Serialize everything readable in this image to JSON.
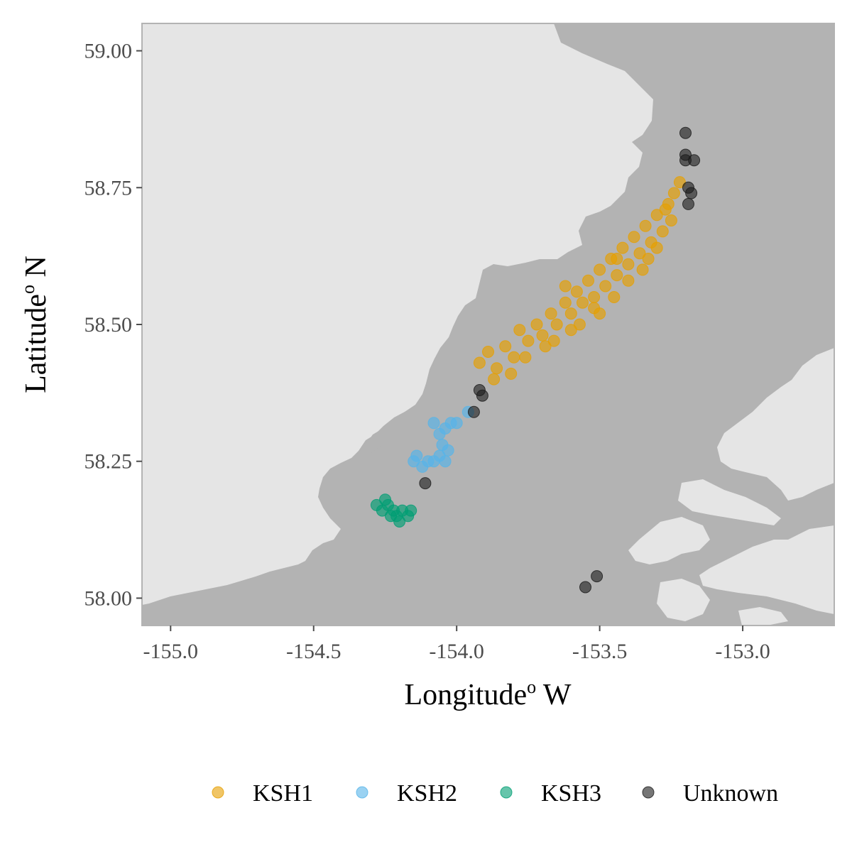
{
  "chart_data": {
    "type": "scatter",
    "xlabel": "Longitude",
    "xlabel_sup": "o",
    "xlabel_suffix": " W",
    "ylabel": "Latitude",
    "ylabel_sup": "o",
    "ylabel_suffix": " N",
    "xlim": [
      -155.1,
      -152.68
    ],
    "ylim": [
      57.95,
      59.05
    ],
    "x_ticks": [
      -155.0,
      -154.5,
      -154.0,
      -153.5,
      -153.0
    ],
    "x_tick_labels": [
      "-155.0",
      "-154.5",
      "-154.0",
      "-153.5",
      "-153.0"
    ],
    "y_ticks": [
      58.0,
      58.25,
      58.5,
      58.75,
      59.0
    ],
    "y_tick_labels": [
      "58.00",
      "58.25",
      "58.50",
      "58.75",
      "59.00"
    ],
    "grid": false,
    "legend_position": "bottom",
    "colors": {
      "water": "#b3b3b3",
      "land": "#e5e5e5",
      "panel_border": "#b3b3b3"
    },
    "series": [
      {
        "name": "KSH1",
        "color": "#E69F00",
        "points": [
          [
            -153.92,
            58.43
          ],
          [
            -153.89,
            58.45
          ],
          [
            -153.86,
            58.42
          ],
          [
            -153.83,
            58.46
          ],
          [
            -153.8,
            58.44
          ],
          [
            -153.78,
            58.49
          ],
          [
            -153.75,
            58.47
          ],
          [
            -153.72,
            58.5
          ],
          [
            -153.7,
            58.48
          ],
          [
            -153.67,
            58.52
          ],
          [
            -153.65,
            58.5
          ],
          [
            -153.62,
            58.54
          ],
          [
            -153.6,
            58.52
          ],
          [
            -153.58,
            58.56
          ],
          [
            -153.56,
            58.54
          ],
          [
            -153.54,
            58.58
          ],
          [
            -153.52,
            58.55
          ],
          [
            -153.5,
            58.6
          ],
          [
            -153.48,
            58.57
          ],
          [
            -153.46,
            58.62
          ],
          [
            -153.44,
            58.59
          ],
          [
            -153.42,
            58.64
          ],
          [
            -153.4,
            58.61
          ],
          [
            -153.38,
            58.66
          ],
          [
            -153.36,
            58.63
          ],
          [
            -153.34,
            58.68
          ],
          [
            -153.32,
            58.65
          ],
          [
            -153.3,
            58.7
          ],
          [
            -153.28,
            58.67
          ],
          [
            -153.26,
            58.72
          ],
          [
            -153.24,
            58.74
          ],
          [
            -153.22,
            58.76
          ],
          [
            -153.25,
            58.69
          ],
          [
            -153.33,
            58.62
          ],
          [
            -153.45,
            58.55
          ],
          [
            -153.57,
            58.5
          ],
          [
            -153.69,
            58.46
          ],
          [
            -153.81,
            58.41
          ],
          [
            -153.87,
            58.4
          ],
          [
            -153.52,
            58.53
          ],
          [
            -153.6,
            58.49
          ],
          [
            -153.4,
            58.58
          ],
          [
            -153.62,
            58.57
          ],
          [
            -153.66,
            58.47
          ],
          [
            -153.76,
            58.44
          ],
          [
            -153.5,
            58.52
          ],
          [
            -153.44,
            58.62
          ],
          [
            -153.35,
            58.6
          ],
          [
            -153.3,
            58.64
          ],
          [
            -153.27,
            58.71
          ]
        ]
      },
      {
        "name": "KSH2",
        "color": "#56B4E9",
        "points": [
          [
            -154.08,
            58.32
          ],
          [
            -154.06,
            58.3
          ],
          [
            -154.05,
            58.28
          ],
          [
            -154.04,
            58.31
          ],
          [
            -154.03,
            58.27
          ],
          [
            -154.02,
            58.32
          ],
          [
            -154.0,
            58.32
          ],
          [
            -154.06,
            58.26
          ],
          [
            -154.08,
            58.25
          ],
          [
            -154.1,
            58.25
          ],
          [
            -154.12,
            58.24
          ],
          [
            -154.14,
            58.26
          ],
          [
            -154.15,
            58.25
          ],
          [
            -154.04,
            58.25
          ],
          [
            -153.96,
            58.34
          ]
        ]
      },
      {
        "name": "KSH3",
        "color": "#009E73",
        "points": [
          [
            -154.28,
            58.17
          ],
          [
            -154.26,
            58.16
          ],
          [
            -154.24,
            58.17
          ],
          [
            -154.22,
            58.16
          ],
          [
            -154.21,
            58.15
          ],
          [
            -154.2,
            58.14
          ],
          [
            -154.19,
            58.16
          ],
          [
            -154.17,
            58.15
          ],
          [
            -154.25,
            58.18
          ],
          [
            -154.23,
            58.15
          ],
          [
            -154.16,
            58.16
          ]
        ]
      },
      {
        "name": "Unknown",
        "color": "#1a1a1a",
        "points": [
          [
            -153.2,
            58.85
          ],
          [
            -153.2,
            58.81
          ],
          [
            -153.2,
            58.8
          ],
          [
            -153.17,
            58.8
          ],
          [
            -153.19,
            58.75
          ],
          [
            -153.19,
            58.72
          ],
          [
            -153.18,
            58.74
          ],
          [
            -153.92,
            58.38
          ],
          [
            -153.91,
            58.37
          ],
          [
            -153.94,
            58.34
          ],
          [
            -154.11,
            58.21
          ],
          [
            -153.51,
            58.04
          ],
          [
            -153.55,
            58.02
          ]
        ]
      }
    ]
  }
}
